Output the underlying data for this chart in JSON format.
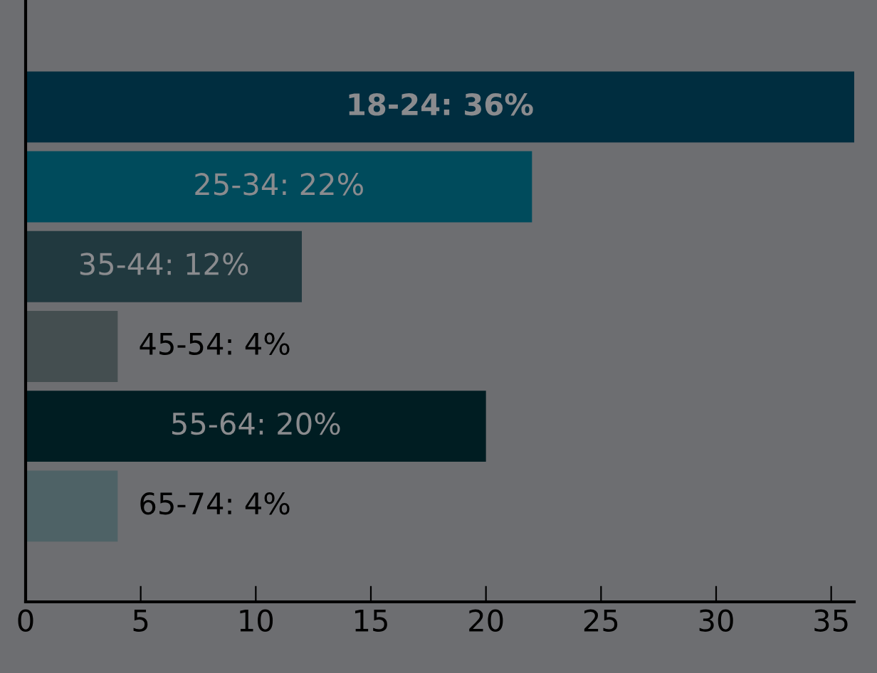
{
  "chart_data": {
    "type": "bar",
    "orientation": "horizontal",
    "categories": [
      null,
      null,
      null,
      null,
      null,
      null
    ],
    "values": [
      36,
      22,
      12,
      4,
      20,
      4
    ],
    "value_labels": [
      "18-24: 36%",
      "25-34: 22%",
      "35-44: 12%",
      "45-54: 4%",
      "55-64: 20%",
      "65-74: 4%"
    ],
    "colors": [
      "#002d3f",
      "#004b5c",
      "#21393f",
      "#444e50",
      "#001d22",
      "#4e6266"
    ],
    "xlim": [
      0,
      36
    ],
    "xticks": [
      0,
      5,
      10,
      15,
      20,
      25,
      30,
      35
    ],
    "tick_labels": "x",
    "grid": false,
    "legend": false
  }
}
